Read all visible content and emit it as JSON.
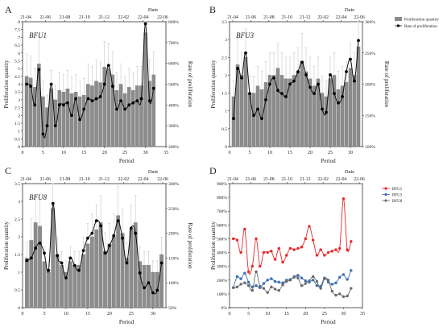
{
  "panel_labels": [
    "A",
    "B",
    "C",
    "D"
  ],
  "chart_data": [
    {
      "panel": "A",
      "type": "bar",
      "inset_label": "BFU1",
      "top_axis_title": "Date",
      "date_ticks": [
        "21-04",
        "21-06",
        "21-08",
        "21-10",
        "21-12",
        "22-02",
        "22-04",
        "22-06"
      ],
      "xlabel": "Period",
      "ylabel": "Proliferation quantity",
      "y2label": "Rate of proliferation",
      "xlim": [
        0,
        35
      ],
      "ylim": [
        0,
        8
      ],
      "y2lim": [
        200,
        800
      ],
      "x_ticks": [
        0,
        5,
        10,
        15,
        20,
        25,
        30,
        35
      ],
      "y_ticks": [
        0,
        0.5,
        1,
        1.5,
        2,
        2.5,
        3,
        3.5,
        4,
        4.5,
        5,
        5.5,
        6,
        6.5,
        7,
        7.5,
        8
      ],
      "y2_ticks": [
        "200%",
        "300%",
        "400%",
        "500%",
        "600%",
        "700%",
        "800%"
      ],
      "y2_values": [
        200,
        300,
        400,
        500,
        600,
        700,
        800
      ],
      "series": [
        {
          "kind": "bar",
          "x": [
            1,
            2,
            3,
            4,
            5,
            6,
            7,
            8,
            9,
            10,
            11,
            12,
            13,
            14,
            15,
            16,
            17,
            18,
            19,
            20,
            21,
            22,
            23,
            24,
            25,
            26,
            27,
            28,
            29,
            30,
            31,
            32
          ],
          "values": [
            4.5,
            4.4,
            3.8,
            5.3,
            3.2,
            2.5,
            3.7,
            3.0,
            3.6,
            3.5,
            3.7,
            3.4,
            3.5,
            3.2,
            3.3,
            4.0,
            3.9,
            4.2,
            4.1,
            5.1,
            5.0,
            4.6,
            3.6,
            4.0,
            3.4,
            3.8,
            3.6,
            3.9,
            3.9,
            7.3,
            4.2,
            4.6
          ]
        },
        {
          "kind": "line",
          "x": [
            1,
            2,
            3,
            4,
            5,
            6,
            7,
            8,
            9,
            10,
            11,
            12,
            13,
            14,
            15,
            16,
            17,
            18,
            19,
            20,
            21,
            22,
            23,
            24,
            25,
            26,
            27,
            28,
            29,
            30,
            31,
            32
          ],
          "values": [
            500,
            490,
            400,
            570,
            260,
            300,
            500,
            300,
            400,
            400,
            410,
            350,
            430,
            330,
            380,
            430,
            420,
            430,
            440,
            500,
            590,
            490,
            380,
            420,
            380,
            400,
            410,
            420,
            430,
            790,
            420,
            480
          ]
        }
      ]
    },
    {
      "panel": "B",
      "type": "bar",
      "inset_label": "BFU3",
      "top_axis_title": "Date",
      "date_ticks": [
        "21-04",
        "21-06",
        "21-08",
        "21-10",
        "21-12",
        "22-02",
        "22-04",
        "22-06"
      ],
      "xlabel": "Period",
      "ylabel": "Proliferation quantity",
      "y2label": "Rate of proliferation",
      "xlim": [
        0,
        33
      ],
      "ylim": [
        0,
        3.5
      ],
      "y2lim": [
        100,
        300
      ],
      "x_ticks": [
        0,
        5,
        10,
        15,
        20,
        25,
        30
      ],
      "y_ticks": [
        0,
        0.5,
        1,
        1.5,
        2,
        2.5,
        3,
        3.5
      ],
      "y2_ticks": [
        "100%",
        "150%",
        "200%",
        "250%",
        "300%"
      ],
      "y2_values": [
        100,
        150,
        200,
        250,
        300
      ],
      "legend": [
        "Proliferation quantity",
        "Rate of proliferation"
      ],
      "series": [
        {
          "kind": "bar",
          "x": [
            1,
            2,
            3,
            4,
            5,
            6,
            7,
            8,
            9,
            10,
            11,
            12,
            13,
            14,
            15,
            16,
            17,
            18,
            19,
            20,
            21,
            22,
            23,
            24,
            25,
            26,
            27,
            28,
            29,
            30,
            31,
            32
          ],
          "values": [
            1.4,
            2.3,
            2.0,
            2.5,
            1.5,
            1.5,
            1.7,
            1.6,
            1.8,
            2.0,
            2.0,
            2.2,
            2.0,
            1.9,
            1.9,
            2.0,
            2.1,
            2.4,
            2.1,
            1.9,
            1.7,
            1.9,
            1.5,
            1.4,
            1.9,
            2.0,
            1.6,
            1.7,
            1.8,
            2.2,
            2.0,
            2.8
          ]
        },
        {
          "kind": "line",
          "x": [
            1,
            2,
            3,
            4,
            5,
            6,
            7,
            8,
            9,
            10,
            11,
            12,
            13,
            14,
            15,
            16,
            17,
            18,
            19,
            20,
            21,
            22,
            23,
            24,
            25,
            26,
            27,
            28,
            29,
            30,
            31,
            32
          ],
          "values": [
            145,
            225,
            210,
            250,
            185,
            150,
            160,
            145,
            175,
            200,
            210,
            190,
            185,
            180,
            200,
            205,
            220,
            235,
            215,
            195,
            185,
            200,
            160,
            155,
            215,
            185,
            170,
            180,
            220,
            240,
            205,
            270
          ]
        }
      ]
    },
    {
      "panel": "C",
      "type": "bar",
      "inset_label": "BFU8",
      "top_axis_title": "Date",
      "date_ticks": [
        "21-04",
        "21-06",
        "21-08",
        "21-10",
        "21-12",
        "22-02",
        "22-04",
        "22-06"
      ],
      "xlabel": "Period",
      "ylabel": "Proliferation quantity",
      "y2label": "Rate of proliferation",
      "xlim": [
        0,
        33
      ],
      "ylim": [
        0,
        3.5
      ],
      "y2lim": [
        50,
        300
      ],
      "x_ticks": [
        0,
        5,
        10,
        15,
        20,
        25,
        30
      ],
      "y_ticks": [
        0,
        0.5,
        1,
        1.5,
        2,
        2.5,
        3,
        3.5
      ],
      "y2_ticks": [
        "50%",
        "100%",
        "150%",
        "200%",
        "250%",
        "300%"
      ],
      "y2_values": [
        50,
        100,
        150,
        200,
        250,
        300
      ],
      "series": [
        {
          "kind": "bar",
          "x": [
            1,
            2,
            3,
            4,
            5,
            6,
            7,
            8,
            9,
            10,
            11,
            12,
            13,
            14,
            15,
            16,
            17,
            18,
            19,
            20,
            21,
            22,
            23,
            24,
            25,
            26,
            27,
            28,
            29,
            30,
            31,
            32
          ],
          "values": [
            1.4,
            1.9,
            2.4,
            2.3,
            1.3,
            1.0,
            2.8,
            1.5,
            1.2,
            1.0,
            1.3,
            1.2,
            1.2,
            1.5,
            1.8,
            2.0,
            2.2,
            2.4,
            1.6,
            1.8,
            2.0,
            2.6,
            2.1,
            1.4,
            2.2,
            2.4,
            1.3,
            1.2,
            1.2,
            1.0,
            1.0,
            1.5
          ]
        },
        {
          "kind": "line",
          "x": [
            1,
            2,
            3,
            4,
            5,
            6,
            7,
            8,
            9,
            10,
            11,
            12,
            13,
            14,
            15,
            16,
            17,
            18,
            19,
            20,
            21,
            22,
            23,
            24,
            25,
            26,
            27,
            28,
            29,
            30,
            31,
            32
          ],
          "values": [
            145,
            150,
            170,
            180,
            160,
            125,
            260,
            155,
            140,
            110,
            150,
            135,
            125,
            165,
            190,
            200,
            225,
            215,
            160,
            175,
            195,
            225,
            190,
            140,
            210,
            200,
            120,
            90,
            100,
            80,
            85,
            140
          ]
        }
      ]
    },
    {
      "panel": "D",
      "type": "line",
      "top_axis_title": "Date",
      "date_ticks": [
        "21-04",
        "21-06",
        "21-08",
        "21-10",
        "21-12",
        "22-02",
        "22-04",
        "22-06"
      ],
      "xlabel": "Period",
      "ylabel": "Proliferation quantity",
      "xlim": [
        0,
        35
      ],
      "ylim": [
        0,
        900
      ],
      "x_ticks": [
        0,
        5,
        10,
        15,
        20,
        25,
        30,
        35
      ],
      "y_ticks": [
        "0%",
        "100%",
        "200%",
        "300%",
        "400%",
        "500%",
        "600%",
        "700%",
        "800%",
        "900%"
      ],
      "y_values": [
        0,
        100,
        200,
        300,
        400,
        500,
        600,
        700,
        800,
        900
      ],
      "legend_placement": "top-right",
      "series": [
        {
          "name": "BFU1",
          "color": "#e8282b",
          "x": [
            1,
            2,
            3,
            4,
            5,
            6,
            7,
            8,
            9,
            10,
            11,
            12,
            13,
            14,
            15,
            16,
            17,
            18,
            19,
            20,
            21,
            22,
            23,
            24,
            25,
            26,
            27,
            28,
            29,
            30,
            31,
            32
          ],
          "values": [
            500,
            490,
            400,
            570,
            260,
            300,
            500,
            300,
            400,
            400,
            410,
            350,
            430,
            330,
            380,
            430,
            420,
            430,
            440,
            500,
            590,
            490,
            380,
            420,
            380,
            400,
            410,
            420,
            430,
            790,
            420,
            480
          ]
        },
        {
          "name": "BFU3",
          "color": "#3a6fb5",
          "x": [
            1,
            2,
            3,
            4,
            5,
            6,
            7,
            8,
            9,
            10,
            11,
            12,
            13,
            14,
            15,
            16,
            17,
            18,
            19,
            20,
            21,
            22,
            23,
            24,
            25,
            26,
            27,
            28,
            29,
            30,
            31,
            32
          ],
          "values": [
            145,
            225,
            210,
            250,
            185,
            150,
            160,
            145,
            175,
            200,
            210,
            190,
            185,
            180,
            200,
            205,
            220,
            235,
            215,
            195,
            185,
            200,
            160,
            155,
            215,
            185,
            170,
            180,
            220,
            240,
            205,
            270
          ]
        },
        {
          "name": "BFU8",
          "color": "#6b6b6b",
          "x": [
            1,
            2,
            3,
            4,
            5,
            6,
            7,
            8,
            9,
            10,
            11,
            12,
            13,
            14,
            15,
            16,
            17,
            18,
            19,
            20,
            21,
            22,
            23,
            24,
            25,
            26,
            27,
            28,
            29,
            30,
            31,
            32
          ],
          "values": [
            145,
            150,
            170,
            180,
            160,
            125,
            260,
            155,
            140,
            110,
            150,
            135,
            125,
            165,
            190,
            200,
            225,
            215,
            160,
            175,
            195,
            225,
            190,
            140,
            210,
            200,
            120,
            90,
            100,
            80,
            85,
            140
          ]
        }
      ]
    }
  ]
}
